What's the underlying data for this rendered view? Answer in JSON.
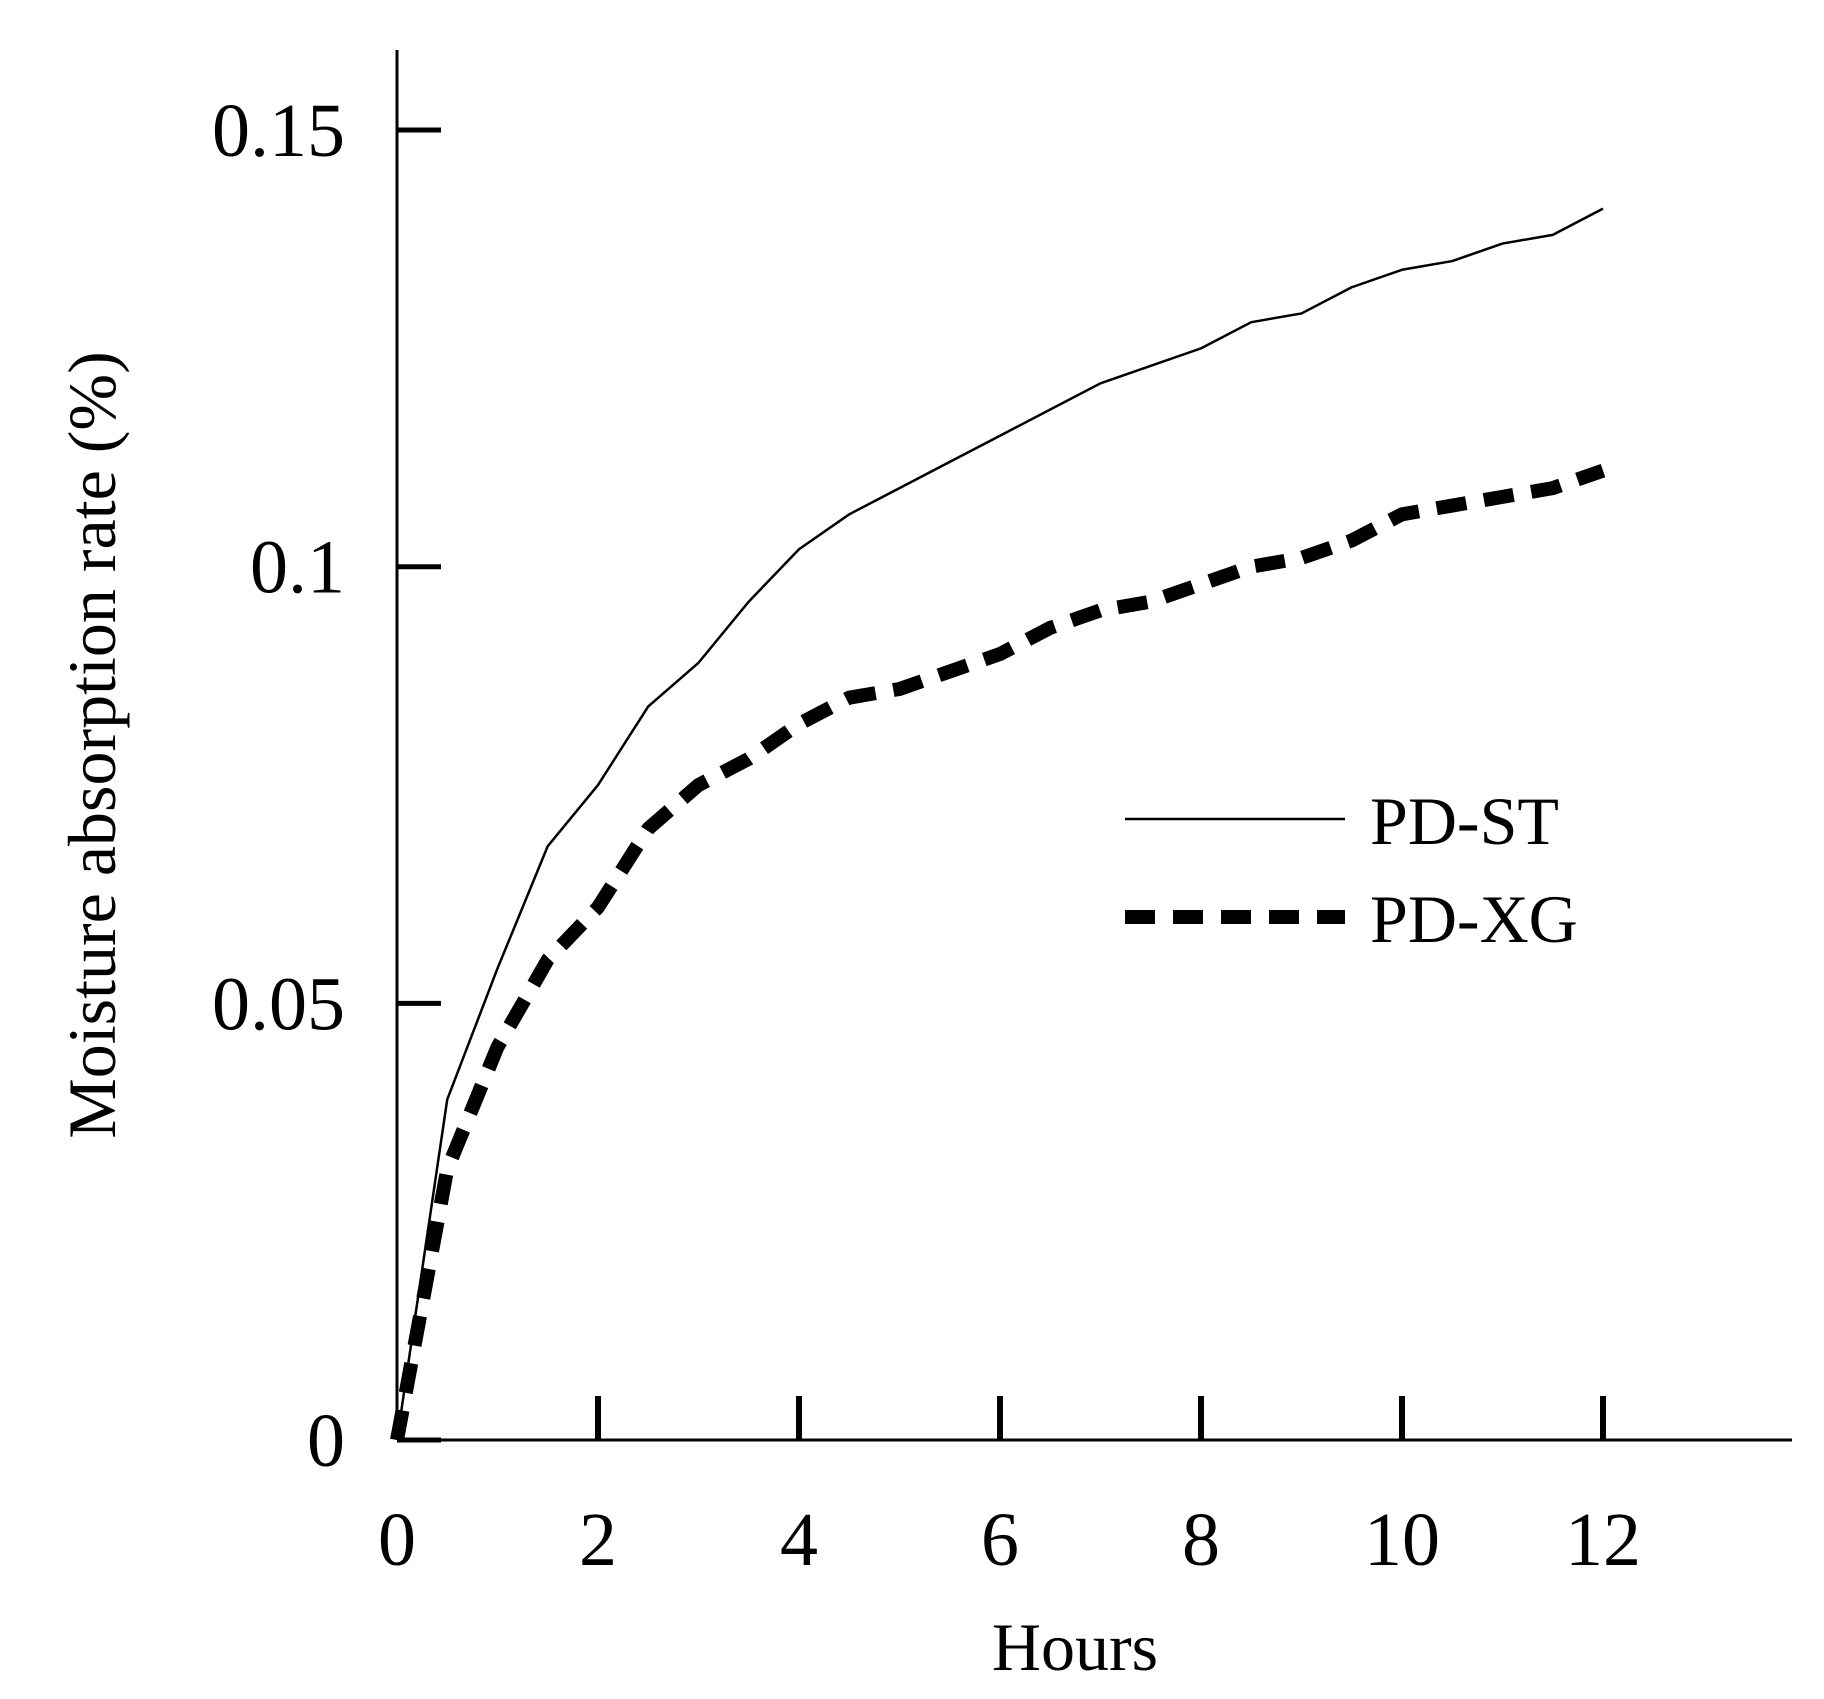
{
  "chart_data": {
    "type": "line",
    "title": "",
    "xlabel": "Hours",
    "ylabel": "Moisture absorption rate (%)",
    "xlim": [
      0,
      14
    ],
    "ylim": [
      0,
      0.16
    ],
    "xticks": [
      0,
      2,
      4,
      6,
      8,
      10,
      12
    ],
    "xtick_labels": [
      "0",
      "2",
      "4",
      "6",
      "8",
      "10",
      "12"
    ],
    "yticks": [
      0,
      0.05,
      0.1,
      0.15
    ],
    "ytick_labels": [
      "0",
      "0.05",
      "0.1",
      "0.15"
    ],
    "grid": false,
    "legend_position": "right-middle",
    "series": [
      {
        "name": "PD-ST",
        "style": "solid-thin",
        "color": "#000000",
        "x": [
          0,
          0.5,
          1,
          1.5,
          2,
          2.5,
          3,
          3.5,
          4,
          4.5,
          5,
          5.5,
          6,
          6.5,
          7,
          7.5,
          8,
          8.5,
          9,
          9.5,
          10,
          10.5,
          11,
          11.5,
          12
        ],
        "y": [
          0,
          0.039,
          0.054,
          0.068,
          0.075,
          0.084,
          0.089,
          0.096,
          0.102,
          0.106,
          0.109,
          0.112,
          0.115,
          0.118,
          0.121,
          0.123,
          0.125,
          0.128,
          0.129,
          0.132,
          0.134,
          0.135,
          0.137,
          0.138,
          0.141
        ]
      },
      {
        "name": "PD-XG",
        "style": "dashed-thick",
        "color": "#000000",
        "x": [
          0,
          0.5,
          1,
          1.5,
          2,
          2.5,
          3,
          3.5,
          4,
          4.5,
          5,
          5.5,
          6,
          6.5,
          7,
          7.5,
          8,
          8.5,
          9,
          9.5,
          10,
          10.5,
          11,
          11.5,
          12
        ],
        "y": [
          0,
          0.031,
          0.045,
          0.055,
          0.061,
          0.07,
          0.075,
          0.078,
          0.082,
          0.085,
          0.086,
          0.088,
          0.09,
          0.093,
          0.095,
          0.096,
          0.098,
          0.1,
          0.101,
          0.103,
          0.106,
          0.107,
          0.108,
          0.109,
          0.111
        ]
      }
    ]
  }
}
